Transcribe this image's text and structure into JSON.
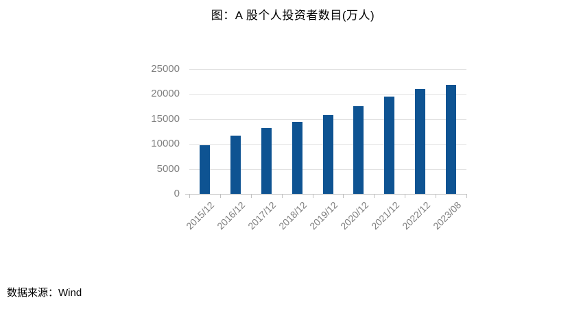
{
  "chart": {
    "title": "图：A 股个人投资者数目(万人)",
    "source": "数据来源：Wind"
  },
  "chart_data": {
    "type": "bar",
    "title": "图：A 股个人投资者数目(万人)",
    "categories": [
      "2015/12",
      "2016/12",
      "2017/12",
      "2018/12",
      "2019/12",
      "2020/12",
      "2021/12",
      "2022/12",
      "2023/08"
    ],
    "values": [
      9800,
      11650,
      13250,
      14450,
      15800,
      17550,
      19500,
      21050,
      21900
    ],
    "xlabel": "",
    "ylabel": "",
    "ylim": [
      0,
      25000
    ],
    "yticks": [
      0,
      5000,
      10000,
      15000,
      20000,
      25000
    ],
    "grid": "horizontal",
    "legend": "none"
  },
  "colors": {
    "bar": "#0E5392",
    "gridline": "#E2E2E2",
    "axis": "#C0C0C0",
    "tick_label": "#7F7F7F",
    "text": "#000000"
  }
}
